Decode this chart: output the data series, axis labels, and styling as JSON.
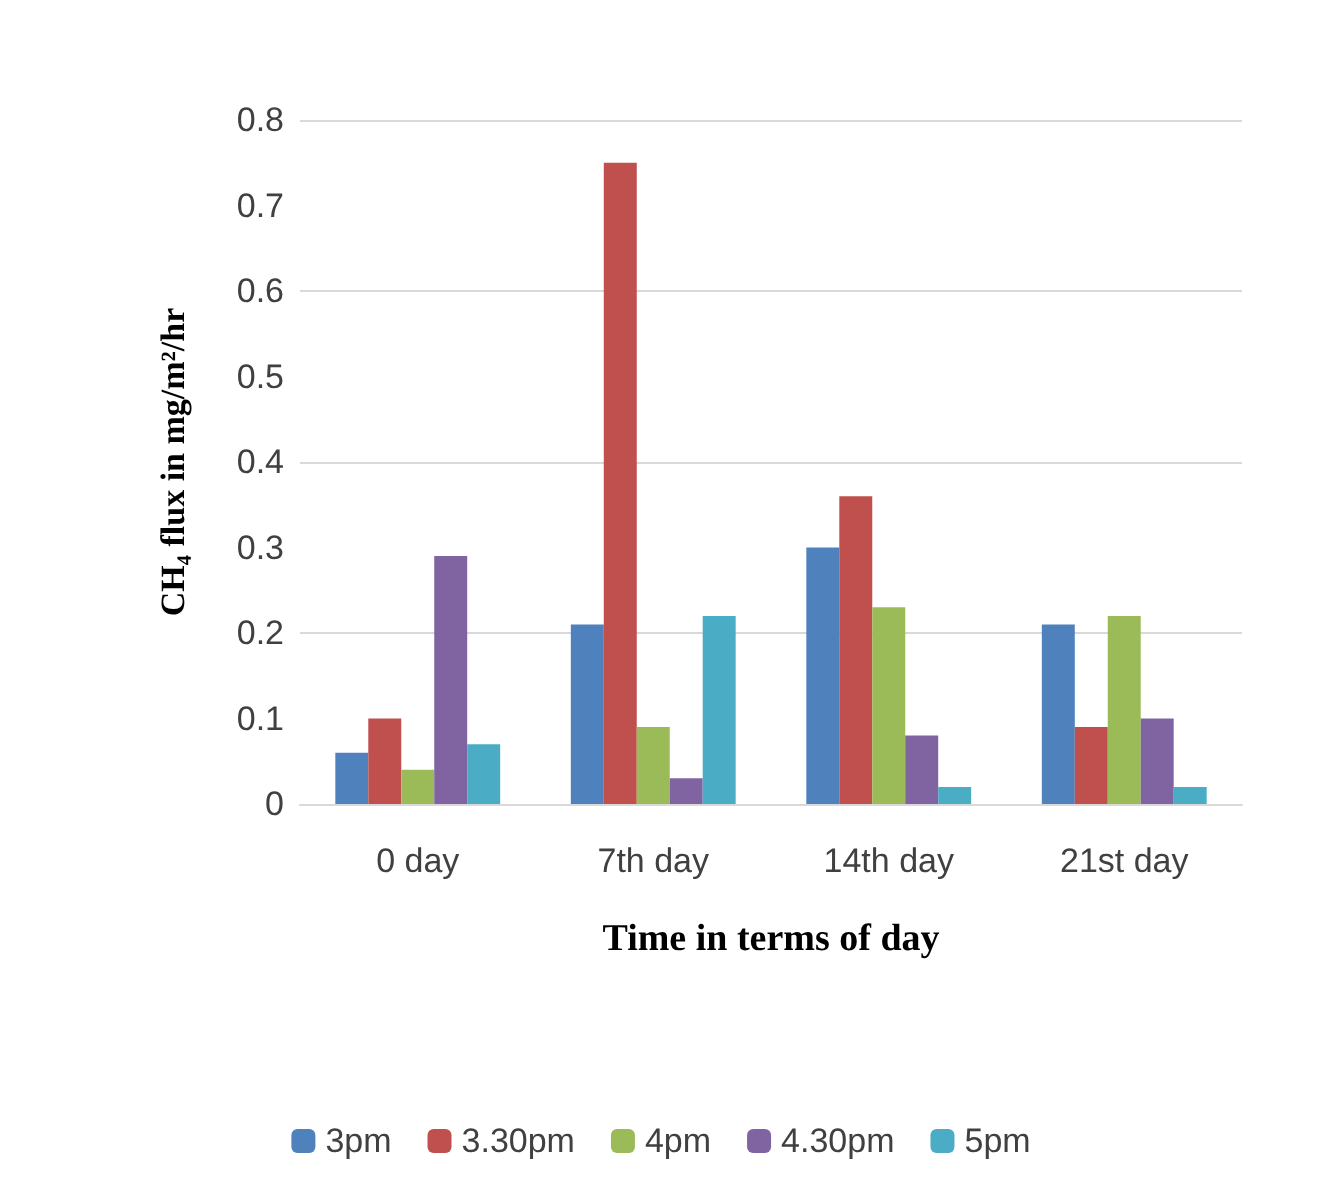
{
  "chart_data": {
    "type": "bar",
    "xlabel": "Time in terms of day",
    "ylabel": "CH₄ flux in mg/m²/hr",
    "categories": [
      "0 day",
      "7th day",
      "14th day",
      "21st day"
    ],
    "series": [
      {
        "name": "3pm",
        "color": "#4f81bd",
        "values": [
          0.06,
          0.21,
          0.3,
          0.21
        ]
      },
      {
        "name": "3.30pm",
        "color": "#c0504d",
        "values": [
          0.1,
          0.75,
          0.36,
          0.09
        ]
      },
      {
        "name": "4pm",
        "color": "#9bbb59",
        "values": [
          0.04,
          0.09,
          0.23,
          0.22
        ]
      },
      {
        "name": "4.30pm",
        "color": "#8064a2",
        "values": [
          0.29,
          0.03,
          0.08,
          0.1
        ]
      },
      {
        "name": "5pm",
        "color": "#4bacc6",
        "values": [
          0.07,
          0.22,
          0.02,
          0.02
        ]
      }
    ],
    "ylim": [
      0,
      0.8
    ],
    "yticks": [
      0,
      0.1,
      0.2,
      0.3,
      0.4,
      0.5,
      0.6,
      0.7,
      0.8
    ],
    "grid": "y",
    "legend": "bottom"
  }
}
